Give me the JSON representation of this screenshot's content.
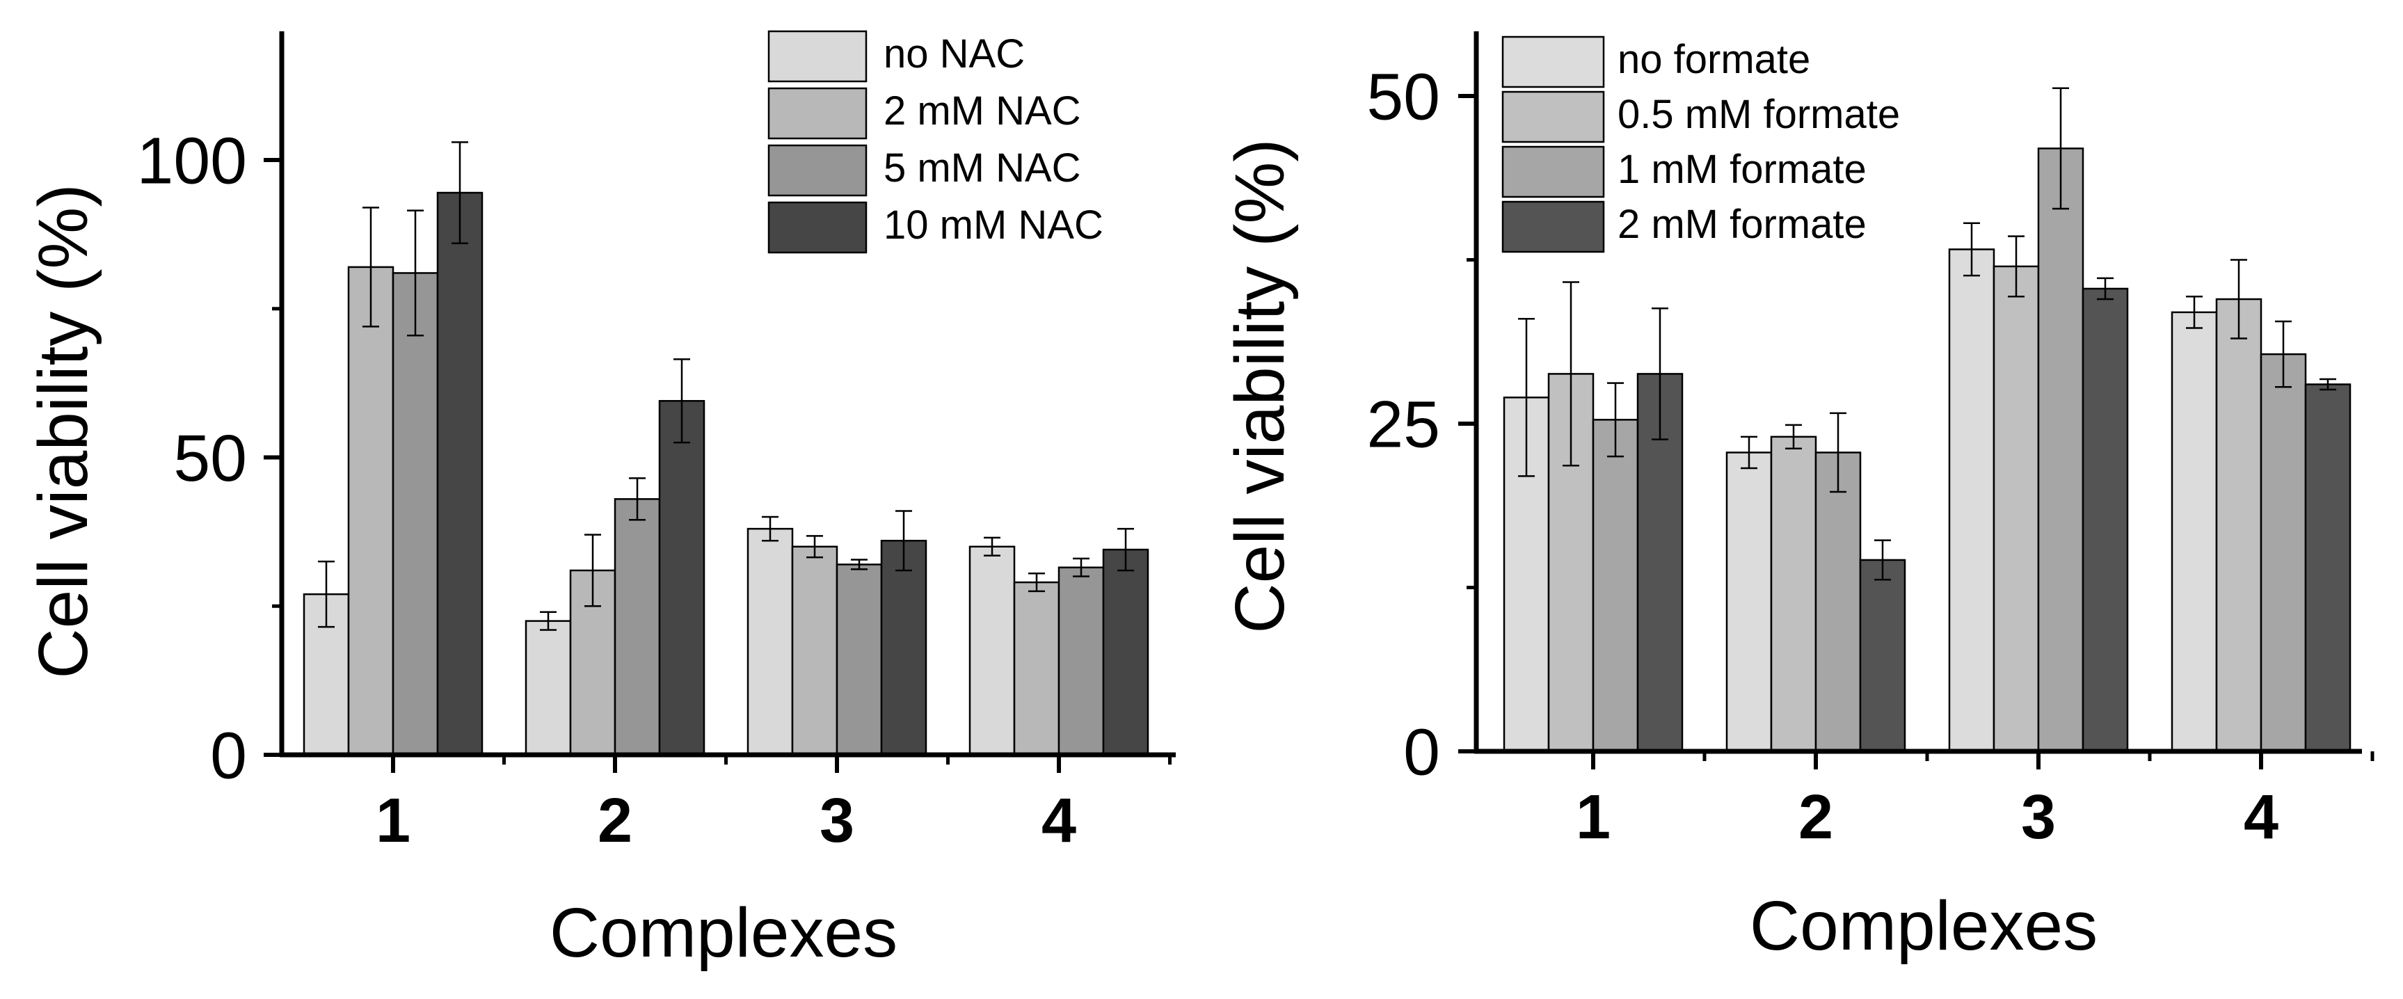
{
  "chart_data": [
    {
      "type": "bar",
      "title": "",
      "xlabel": "Complexes",
      "ylabel": "Cell viability (%)",
      "ylim": [
        0,
        120
      ],
      "yticks": [
        0,
        50,
        100
      ],
      "ytick_labels": [
        "0",
        "50",
        "100"
      ],
      "minor_yticks": [
        25,
        75
      ],
      "categories": [
        "1",
        "2",
        "3",
        "4"
      ],
      "legend_position": "top-right",
      "series": [
        {
          "name": "no NAC",
          "color": "#d9d9d9",
          "values": [
            27,
            22.5,
            38,
            35
          ],
          "errors": [
            5.5,
            1.5,
            2,
            1.5
          ]
        },
        {
          "name": "2 mM NAC",
          "color": "#b8b8b8",
          "values": [
            82,
            31,
            35,
            29
          ],
          "errors": [
            10,
            6,
            1.8,
            1.5
          ]
        },
        {
          "name": "5 mM NAC",
          "color": "#969696",
          "values": [
            81,
            43,
            32,
            31.5
          ],
          "errors": [
            10.5,
            3.5,
            0.8,
            1.5
          ]
        },
        {
          "name": "10 mM NAC",
          "color": "#464646",
          "values": [
            94.5,
            59.5,
            36,
            34.5
          ],
          "errors": [
            8.5,
            7,
            5,
            3.5
          ]
        }
      ]
    },
    {
      "type": "bar",
      "title": "",
      "xlabel": "Complexes",
      "ylabel": "Cell viability (%)",
      "ylim": [
        0,
        55
      ],
      "yticks": [
        0,
        25,
        50
      ],
      "ytick_labels": [
        "0",
        "25",
        "50"
      ],
      "minor_yticks": [
        12.5,
        37.5
      ],
      "categories": [
        "1",
        "2",
        "3",
        "4"
      ],
      "legend_position": "top-left",
      "series": [
        {
          "name": "no formate",
          "color": "#dcdcdc",
          "values": [
            27,
            22.8,
            38.3,
            33.5
          ],
          "errors": [
            6,
            1.2,
            2,
            1.2
          ]
        },
        {
          "name": "0.5 mM formate",
          "color": "#c0c0c0",
          "values": [
            28.8,
            24,
            37,
            34.5
          ],
          "errors": [
            7,
            0.9,
            2.3,
            3
          ]
        },
        {
          "name": "1 mM formate",
          "color": "#a6a6a6",
          "values": [
            25.3,
            22.8,
            46,
            30.3
          ],
          "errors": [
            2.8,
            3,
            4.6,
            2.5
          ]
        },
        {
          "name": "2 mM formate",
          "color": "#545454",
          "values": [
            28.8,
            14.6,
            35.3,
            28
          ],
          "errors": [
            5,
            1.5,
            0.8,
            0.4
          ]
        }
      ]
    }
  ]
}
